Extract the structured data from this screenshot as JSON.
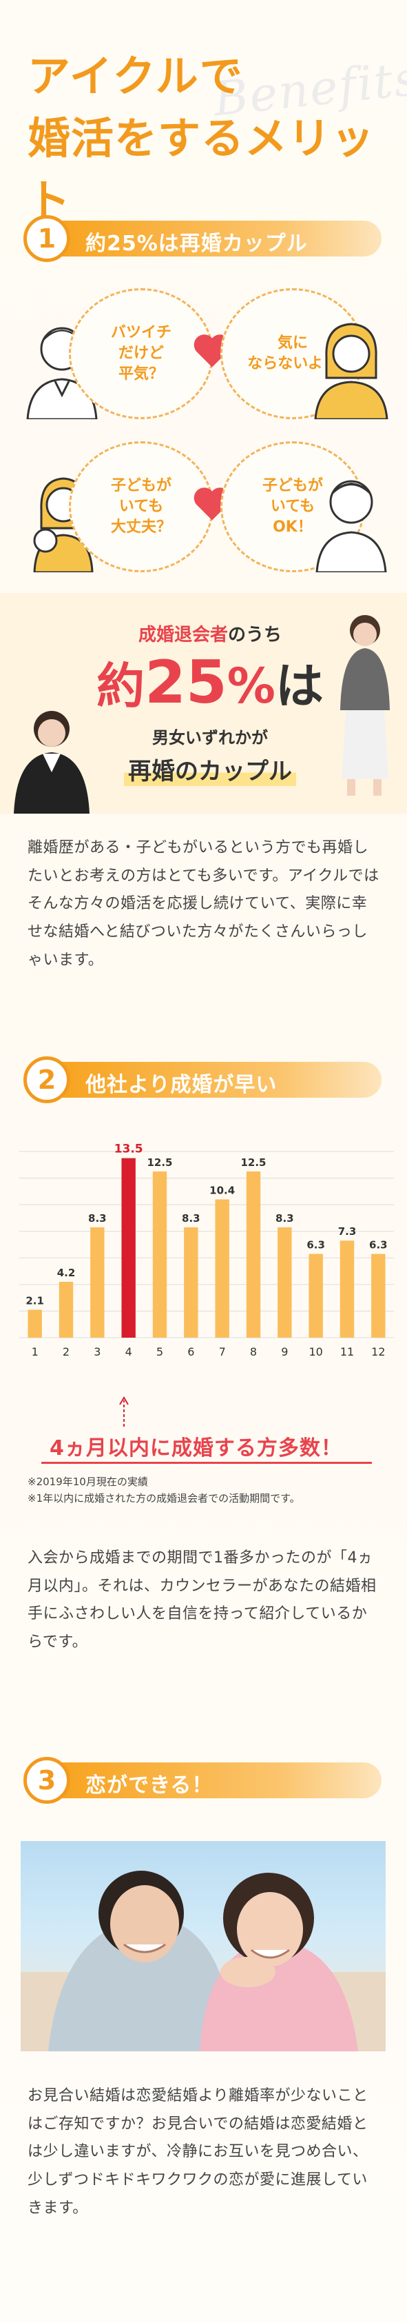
{
  "hero": {
    "line1": "アイクルで",
    "line2": "婚活をするメリット",
    "bg_word": "Benefits"
  },
  "section1": {
    "number": "1",
    "title": "約25%は再婚カップル",
    "bubbles": [
      "バツイチ\nだけど\n平気？",
      "気に\nならないよ！",
      "子どもが\nいても\n大丈夫？",
      "子どもが\nいても\nOK！"
    ],
    "stat": {
      "line1_em": "成婚退会者",
      "line1_rest": "のうち",
      "big_prefix": "約",
      "big_num": "25",
      "big_suffix": "%",
      "big_tail": "は",
      "line3": "男女いずれかが",
      "line4": "再婚のカップル"
    },
    "body": "離婚歴がある・子どもがいるという方でも再婚したいとお考えの方はとても多いです。アイクルではそんな方々の婚活を応援し続けていて、実際に幸せな結婚へと結びついた方々がたくさんいらっしゃいます。"
  },
  "section2": {
    "number": "2",
    "title": "他社より成婚が早い",
    "callout": "4ヵ月以内に成婚する方多数！",
    "note1": "※2019年10月現在の実績",
    "note2": "※1年以内に成婚された方の成婚退会者での活動期間です。",
    "body": "入会から成婚までの期間で1番多かったのが「4ヵ月以内」。それは、カウンセラーがあなたの結婚相手にふさわしい人を自信を持って紹介しているからです。"
  },
  "chart_data": {
    "type": "bar",
    "categories": [
      "1",
      "2",
      "3",
      "4",
      "5",
      "6",
      "7",
      "8",
      "9",
      "10",
      "11",
      "12"
    ],
    "values": [
      2.1,
      4.2,
      8.3,
      13.5,
      12.5,
      8.3,
      10.4,
      12.5,
      8.3,
      6.3,
      7.3,
      6.3
    ],
    "highlight_index": 3,
    "colors": {
      "bar": "#fbbd5a",
      "highlight": "#d81e2c",
      "grid": "#dcdcdc"
    },
    "ylim": [
      0,
      14
    ]
  },
  "section3": {
    "number": "3",
    "title": "恋ができる！",
    "body": "お見合い結婚は恋愛結婚より離婚率が少ないことはご存知ですか？お見合いでの結婚は恋愛結婚とは少し違いますが、冷静にお互いを見つめ合い、少しずつドキドキワクワクの恋が愛に進展していきます。"
  }
}
